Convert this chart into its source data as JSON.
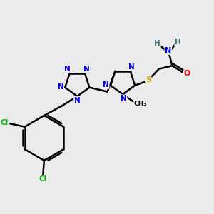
{
  "bg_color": "#ebebeb",
  "atom_colors": {
    "C": "#000000",
    "N": "#0000ee",
    "O": "#ee0000",
    "S": "#ccaa00",
    "Cl": "#00bb00",
    "H": "#407878"
  },
  "bond_color": "#000000",
  "bond_width": 1.8,
  "figsize": [
    3.0,
    3.0
  ],
  "dpi": 100
}
